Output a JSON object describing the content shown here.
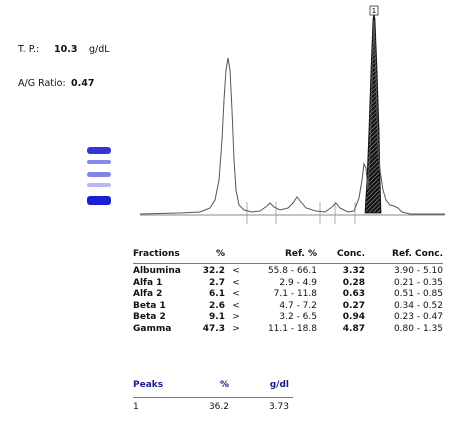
{
  "summary": {
    "tp_label": "T. P.:",
    "tp_value": "10.3",
    "tp_unit": "g/dL",
    "ag_label": "A/G Ratio:",
    "ag_value": "0.47"
  },
  "peak_marker": "1",
  "fractions": {
    "headers": [
      "Fractions",
      "%",
      "Ref. %",
      "Conc.",
      "Ref. Conc."
    ],
    "rows": [
      {
        "name": "Albumina",
        "pct": "32.2",
        "cmp": "<",
        "ref": "55.8 - 66.1",
        "conc": "3.32",
        "ref_conc": "3.90 - 5.10"
      },
      {
        "name": "Alfa 1",
        "pct": "2.7",
        "cmp": "<",
        "ref": "2.9 -  4.9",
        "conc": "0.28",
        "ref_conc": "0.21 - 0.35"
      },
      {
        "name": "Alfa 2",
        "pct": "6.1",
        "cmp": "<",
        "ref": "7.1 - 11.8",
        "conc": "0.63",
        "ref_conc": "0.51 - 0.85"
      },
      {
        "name": "Beta 1",
        "pct": "2.6",
        "cmp": "<",
        "ref": "4.7 -  7.2",
        "conc": "0.27",
        "ref_conc": "0.34 - 0.52"
      },
      {
        "name": "Beta 2",
        "pct": "9.1",
        "cmp": ">",
        "ref": "3.2 -  6.5",
        "conc": "0.94",
        "ref_conc": "0.23 - 0.47"
      },
      {
        "name": "Gamma",
        "pct": "47.3",
        "cmp": ">",
        "ref": "11.1 - 18.8",
        "conc": "4.87",
        "ref_conc": "0.80 - 1.35"
      }
    ]
  },
  "peaks": {
    "headers": [
      "Peaks",
      "%",
      "g/dl"
    ],
    "rows": [
      {
        "id": "1",
        "pct": "36.2",
        "gdl": "3.73"
      }
    ]
  },
  "colors": {
    "header_blue": "#1a1a8c",
    "band_blue": "#2a2ad6",
    "trace": "#555555"
  }
}
